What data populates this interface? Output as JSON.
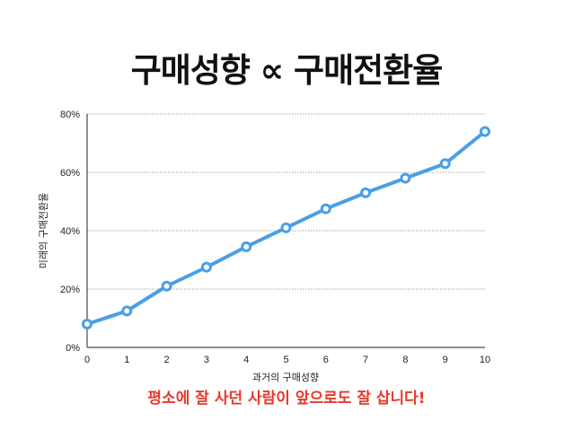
{
  "title": "구매성향 ∝ 구매전환율",
  "caption": "평소에 잘 사던 사람이 앞으로도 잘 삽니다!",
  "colors": {
    "line": "#4a9fe6",
    "caption": "#e8392a"
  },
  "chart_data": {
    "type": "line",
    "x": [
      0,
      1,
      2,
      3,
      4,
      5,
      6,
      7,
      8,
      9,
      10
    ],
    "series": [
      {
        "values": [
          8,
          12.5,
          21,
          27.5,
          34.5,
          41,
          47.5,
          53,
          58,
          63,
          74
        ]
      }
    ],
    "xlabel": "과거의 구매성향",
    "ylabel": "미래의 구매전환율",
    "xlim": [
      0,
      10
    ],
    "ylim": [
      0,
      80
    ],
    "xticks": [
      "0",
      "1",
      "2",
      "3",
      "4",
      "5",
      "6",
      "7",
      "8",
      "9",
      "10"
    ],
    "yticks": [
      "0%",
      "20%",
      "40%",
      "60%",
      "80%"
    ],
    "grid": "horizontal dotted",
    "legend": "none"
  }
}
